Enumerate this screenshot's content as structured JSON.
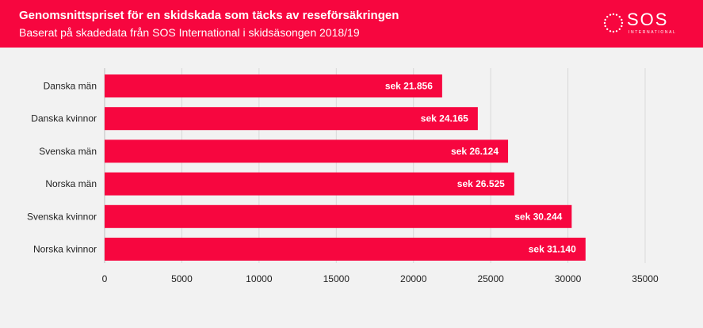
{
  "header": {
    "title": "Genomsnittspriset för en skidskada som täcks av reseförsäkringen",
    "subtitle": "Baserat på skadedata från SOS International i skidsäsongen 2018/19",
    "logo_text": "SOS",
    "logo_subtext": "INTERNATIONAL",
    "background_color": "#f7063f"
  },
  "chart_data": {
    "type": "bar",
    "orientation": "horizontal",
    "title": "Genomsnittspriset för en skidskada som täcks av reseförsäkringen",
    "subtitle": "Baserat på skadedata från SOS International i skidsäsongen 2018/19",
    "categories": [
      "Danska män",
      "Danska kvinnor",
      "Svenska män",
      "Norska män",
      "Svenska kvinnor",
      "Norska kvinnor"
    ],
    "values": [
      21856,
      24165,
      26124,
      26525,
      30244,
      31140
    ],
    "data_labels": [
      "sek 21.856",
      "sek 24.165",
      "sek 26.124",
      "sek 26.525",
      "sek 30.244",
      "sek 31.140"
    ],
    "xlim": [
      0,
      35000
    ],
    "x_ticks": [
      0,
      5000,
      10000,
      15000,
      20000,
      25000,
      30000,
      35000
    ],
    "x_tick_labels": [
      "0",
      "5000",
      "10000",
      "15000",
      "20000",
      "25000",
      "30000",
      "35000"
    ],
    "grid": true,
    "legend": false,
    "bar_color": "#f7063f",
    "label_color": "#ffffff",
    "grid_color": "#d9d9d9"
  }
}
